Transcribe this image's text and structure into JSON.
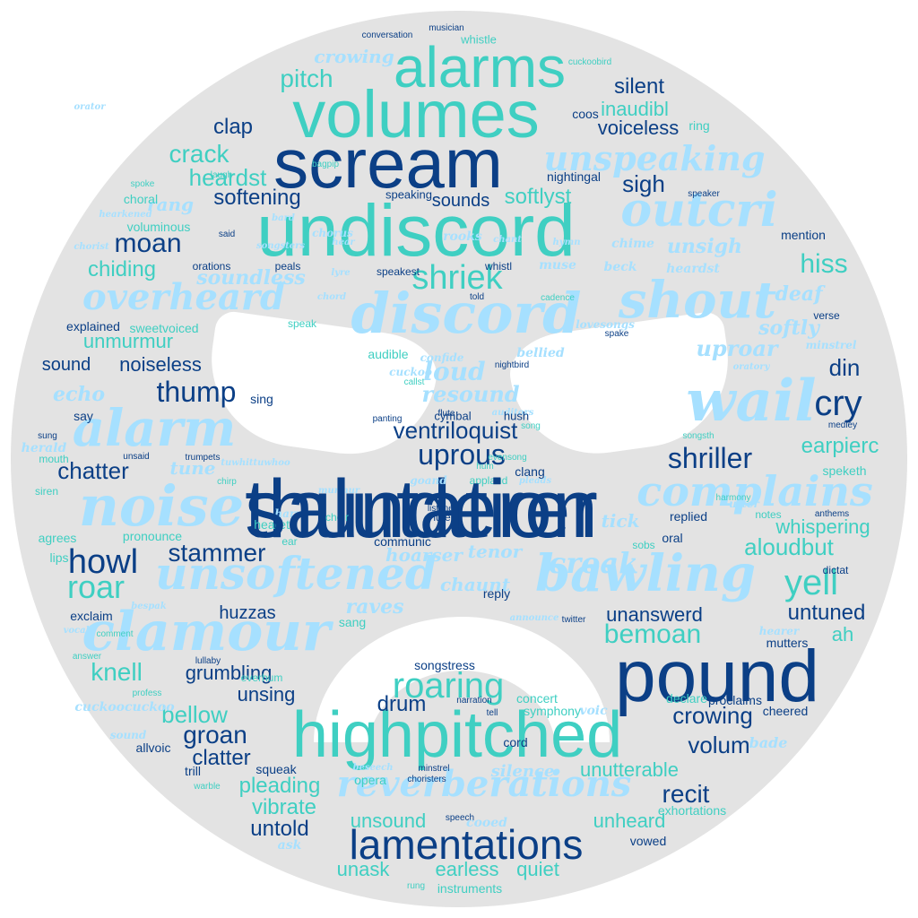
{
  "colors": {
    "background": "#ffffff",
    "face": "#e3e3e3",
    "dark_blue": "#0b3f86",
    "teal": "#3fcfc2",
    "light_blue": "#a6e0ff"
  },
  "words": [
    "thunderer",
    "scream",
    "undiscord",
    "volumes",
    "alarms",
    "pound",
    "highpitched",
    "lamentations",
    "noise",
    "discord",
    "wail",
    "shout",
    "alarm",
    "clamour",
    "bawling",
    "unsoftened",
    "complains",
    "outcri",
    "overheard",
    "reverberations",
    "unspeaking",
    "shriek",
    "cry",
    "uprous",
    "ventriloquist",
    "howl",
    "roar",
    "yell",
    "roaring",
    "croak",
    "moan",
    "stammer",
    "thump",
    "chatter",
    "shriller",
    "hiss",
    "pitch",
    "crack",
    "clap",
    "heardst",
    "softening",
    "sigh",
    "silent",
    "voiceless",
    "inaudibl",
    "softlyst",
    "sounds",
    "unsigh",
    "chiding",
    "soundless",
    "unmurmur",
    "noiseless",
    "sound",
    "explained",
    "sweetvoiced",
    "loud",
    "resound",
    "echo",
    "din",
    "uproar",
    "softly",
    "deaf",
    "earpierc",
    "aloudbut",
    "whispering",
    "hoarser",
    "chaunt",
    "tenor",
    "tick",
    "huzzas",
    "raves",
    "bemoan",
    "unanswerd",
    "untuned",
    "ah",
    "knell",
    "grumbling",
    "unsing",
    "bellow",
    "groan",
    "clatter",
    "drum",
    "crowing",
    "volum",
    "recit",
    "unutterable",
    "silence",
    "pleading",
    "vibrate",
    "untold",
    "unsound",
    "unheard",
    "unask",
    "earless",
    "quiet",
    "crowing",
    "coos",
    "ring",
    "rang",
    "clang",
    "applaud",
    "listener",
    "lyre",
    "whistle",
    "conversation",
    "musician",
    "nightingal",
    "speaking",
    "speaker",
    "bagpip",
    "laugh",
    "choral",
    "spoke",
    "voluminous",
    "hearkened",
    "chorist",
    "songsters",
    "bard",
    "chorus",
    "said",
    "rooks",
    "chant",
    "hymn",
    "chime",
    "mention",
    "orations",
    "peals",
    "hear",
    "whistl",
    "muse",
    "beck",
    "heardst",
    "speakest",
    "told",
    "cadence",
    "chord",
    "speak",
    "lovesongs",
    "spake",
    "verse",
    "minstrel",
    "oratory",
    "bellied",
    "audible",
    "confide",
    "nightbird",
    "cuckoo",
    "callst",
    "sing",
    "say",
    "panting",
    "auditors",
    "cymbal",
    "hush",
    "flute",
    "medley",
    "songsth",
    "sung",
    "herald",
    "unsaid",
    "mouth",
    "trumpets",
    "tuwhittuwhoo",
    "siren",
    "chirp",
    "tune",
    "goand",
    "pleads",
    "murmur",
    "harp",
    "choir",
    "lute",
    "replied",
    "notes",
    "anthems",
    "agrees",
    "pronounce",
    "heareth",
    "ear",
    "communic",
    "lips",
    "sobs",
    "oral",
    "dictat",
    "exclaim",
    "bespak",
    "announce",
    "twitter",
    "sang",
    "reply",
    "vocal",
    "hearer",
    "mutters",
    "answer",
    "lullaby",
    "everhum",
    "songstress",
    "profess",
    "cuckoocuckoo",
    "declare",
    "proclaims",
    "narration",
    "concert",
    "tell",
    "symphony",
    "voic",
    "cheered",
    "sound",
    "allvoic",
    "cord",
    "bade",
    "trill",
    "squeak",
    "beseech",
    "minstrel",
    "warble",
    "choristers",
    "opera",
    "exhortations",
    "speech",
    "cooed",
    "vowed",
    "ask",
    "rung",
    "instruments",
    "comment",
    "harmony",
    "utter",
    "orator",
    "cuckoobird",
    "song",
    "hum",
    "evensong",
    "speketh",
    "salutation"
  ]
}
